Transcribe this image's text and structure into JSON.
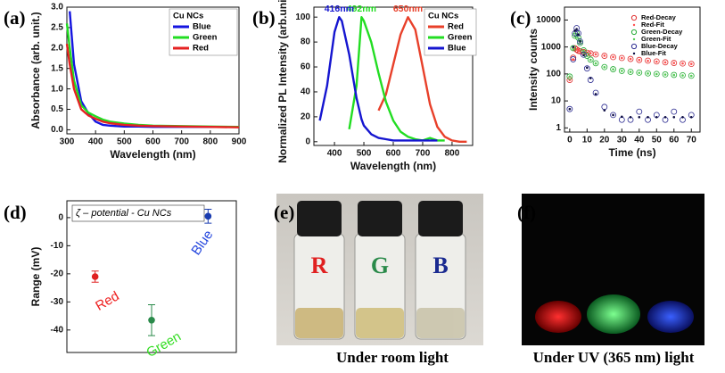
{
  "chart_data": [
    {
      "type": "line",
      "panel_label": "(a)",
      "xlabel": "Wavelength (nm)",
      "ylabel": "Absorbance (arb. unit.)",
      "x": [
        300,
        310,
        325,
        350,
        375,
        400,
        425,
        450,
        500,
        550,
        600,
        700,
        800,
        900
      ],
      "xlim": [
        300,
        900
      ],
      "xticks": [
        300,
        400,
        500,
        600,
        700,
        800,
        900
      ],
      "ylim": [
        -0.1,
        3.0
      ],
      "yticks": [
        {
          "value": 0,
          "label": "0.0"
        },
        {
          "value": 0.5,
          "label": "0.5"
        },
        {
          "value": 1,
          "label": "1.0"
        },
        {
          "value": 1.5,
          "label": "1.5"
        },
        {
          "value": 2,
          "label": "2.0"
        },
        {
          "value": 2.5,
          "label": "2.5"
        },
        {
          "value": 3,
          "label": "3.0"
        }
      ],
      "legend_title": "Cu NCs",
      "series": [
        {
          "name": "Blue",
          "color": "#1515e0",
          "values": [
            null,
            2.9,
            1.6,
            0.7,
            0.4,
            0.2,
            0.12,
            0.1,
            0.08,
            0.08,
            0.07,
            0.07,
            0.07,
            0.07
          ]
        },
        {
          "name": "Green",
          "color": "#22dd22",
          "values": [
            2.6,
            2.0,
            1.2,
            0.6,
            0.42,
            0.33,
            0.25,
            0.2,
            0.15,
            0.12,
            0.1,
            0.09,
            0.08,
            0.07
          ]
        },
        {
          "name": "Red",
          "color": "#e52222",
          "values": [
            2.1,
            1.6,
            1.0,
            0.5,
            0.35,
            0.27,
            0.2,
            0.16,
            0.12,
            0.1,
            0.09,
            0.08,
            0.07,
            0.06
          ]
        }
      ]
    },
    {
      "type": "line",
      "panel_label": "(b)",
      "xlabel": "Wavelength (nm)",
      "ylabel": "Normalized PL Intensity (arb.unit.)",
      "x": [
        350,
        375,
        400,
        416,
        425,
        450,
        475,
        492,
        500,
        525,
        550,
        575,
        600,
        625,
        650,
        675,
        700,
        725,
        750,
        775,
        800,
        825,
        850
      ],
      "xlim": [
        330,
        870
      ],
      "xticks": [
        400,
        500,
        600,
        700,
        800
      ],
      "ylim": [
        -3,
        108
      ],
      "yticks": [
        0,
        20,
        40,
        60,
        80,
        100
      ],
      "legend_title": "Cu NCs",
      "series": [
        {
          "name": "Red",
          "color": "#e8402a",
          "peak_label": "650nm",
          "values": [
            null,
            null,
            null,
            null,
            null,
            null,
            null,
            null,
            null,
            null,
            25,
            38,
            62,
            86,
            100,
            90,
            60,
            30,
            12,
            4,
            1,
            0,
            0
          ]
        },
        {
          "name": "Green",
          "color": "#22dd22",
          "peak_label": "492nm",
          "values": [
            null,
            null,
            null,
            null,
            null,
            10,
            45,
            100,
            97,
            80,
            55,
            32,
            17,
            8,
            4,
            2,
            1,
            3,
            1,
            1,
            null,
            null,
            null
          ]
        },
        {
          "name": "Blue",
          "color": "#1515d0",
          "peak_label": "416nm",
          "values": [
            17,
            45,
            88,
            100,
            97,
            70,
            35,
            18,
            13,
            6,
            3,
            2,
            1,
            1,
            1,
            1,
            1,
            1,
            1,
            null,
            null,
            null,
            null
          ]
        }
      ]
    },
    {
      "type": "scatter",
      "panel_label": "(c)",
      "xlabel": "Time (ns)",
      "ylabel": "Intensity counts",
      "log_y": true,
      "x": [
        0,
        2,
        3,
        4,
        5,
        6,
        8,
        10,
        12,
        15,
        20,
        25,
        30,
        35,
        40,
        45,
        50,
        55,
        60,
        65,
        70
      ],
      "xlim": [
        -3,
        75
      ],
      "xticks": [
        0,
        10,
        20,
        30,
        40,
        50,
        60,
        70
      ],
      "ylim": [
        0.7,
        30000
      ],
      "yticks": [
        1,
        10,
        100,
        1000,
        10000
      ],
      "series": [
        {
          "name": "Red-Decay",
          "color": "#e03030",
          "marker": "circle",
          "values": [
            60,
            400,
            900,
            800,
            720,
            690,
            650,
            610,
            580,
            530,
            470,
            420,
            390,
            360,
            330,
            310,
            290,
            270,
            255,
            245,
            235
          ]
        },
        {
          "name": "Red-Fit",
          "color": "#ff5050",
          "marker": "dot",
          "values": [
            60,
            350,
            850,
            820,
            740,
            700,
            660,
            620,
            585,
            535,
            475,
            425,
            390,
            360,
            330,
            305,
            285,
            268,
            255,
            245,
            235
          ]
        },
        {
          "name": "Green-Decay",
          "color": "#22aa33",
          "marker": "circle",
          "values": [
            80,
            900,
            2600,
            3200,
            2200,
            1400,
            750,
            470,
            340,
            250,
            180,
            150,
            130,
            120,
            112,
            105,
            100,
            96,
            92,
            89,
            86
          ]
        },
        {
          "name": "Green-Fit",
          "color": "#55cc55",
          "marker": "dot",
          "values": [
            80,
            850,
            2500,
            3000,
            2100,
            1350,
            730,
            460,
            335,
            245,
            178,
            148,
            130,
            119,
            110,
            104,
            99,
            95,
            91,
            88,
            85
          ]
        },
        {
          "name": "Blue-Decay",
          "color": "#2a2a90",
          "marker": "circle",
          "values": [
            5,
            350,
            3200,
            5000,
            3200,
            1600,
            520,
            160,
            60,
            20,
            6,
            3,
            2,
            2,
            4,
            2,
            3,
            2,
            4,
            2,
            3
          ]
        },
        {
          "name": "Blue-Fit",
          "color": "#0a0a40",
          "marker": "dot",
          "values": [
            5,
            1000,
            4000,
            4600,
            2900,
            1600,
            500,
            170,
            70,
            18,
            4.5,
            3,
            2.6,
            2.5,
            2.5,
            2.5,
            2.5,
            2.5,
            2.5,
            2.5,
            2.5
          ]
        }
      ]
    },
    {
      "type": "errorbar",
      "panel_label": "(d)",
      "ylabel": "Range (mV)",
      "title": "ζ – potential - Cu NCs",
      "categories": [
        "Red",
        "Green",
        "Blue"
      ],
      "values": [
        -21,
        -36.5,
        0.5
      ],
      "errors": [
        2,
        5.5,
        2.5
      ],
      "colors": [
        "#e02020",
        "#2a8a4a",
        "#1a3cb0"
      ],
      "label_colors": [
        "#ee2222",
        "#33dd22",
        "#2244dd"
      ],
      "ylim": [
        -48,
        6
      ],
      "yticks": [
        0,
        -10,
        -20,
        -30,
        -40
      ]
    }
  ],
  "photo_e": {
    "panel_label": "(e)",
    "vial_labels": [
      "R",
      "G",
      "B"
    ],
    "caption": "Under room light"
  },
  "photo_f": {
    "panel_label": "(f)",
    "caption": "Under UV (365 nm) light"
  }
}
